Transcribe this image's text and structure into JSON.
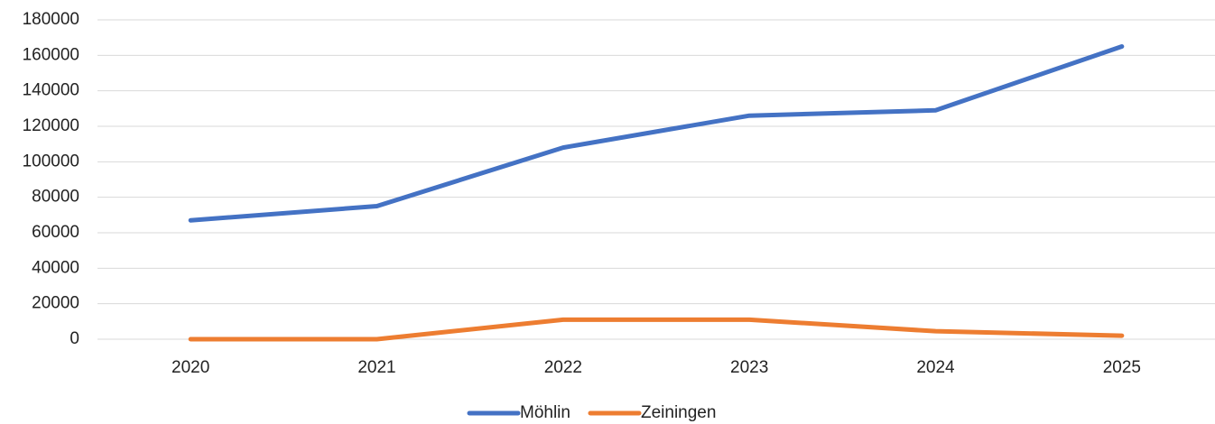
{
  "chart_data": {
    "type": "line",
    "categories": [
      "2020",
      "2021",
      "2022",
      "2023",
      "2024",
      "2025"
    ],
    "series": [
      {
        "name": "Möhlin",
        "color": "#4472c4",
        "values": [
          67000,
          75000,
          108000,
          126000,
          129000,
          165000
        ]
      },
      {
        "name": "Zeiningen",
        "color": "#ed7d31",
        "values": [
          0,
          0,
          11000,
          11000,
          4500,
          2000
        ]
      }
    ],
    "ylim": [
      0,
      180000
    ],
    "yticks": [
      0,
      20000,
      40000,
      60000,
      80000,
      100000,
      120000,
      140000,
      160000,
      180000
    ],
    "grid": true,
    "legend": "bottom"
  }
}
